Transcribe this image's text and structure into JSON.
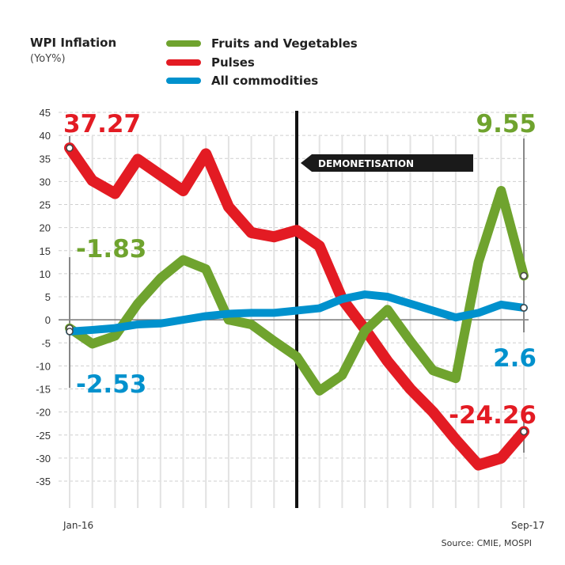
{
  "chart_data": {
    "type": "line",
    "title": "WPI Inflation",
    "subtitle": "(YoY%)",
    "xlabel": "",
    "ylabel": "",
    "ylim": [
      -35,
      45
    ],
    "yticks": [
      45,
      40,
      35,
      30,
      25,
      20,
      15,
      10,
      5,
      0,
      -5,
      -10,
      -15,
      -20,
      -25,
      -30,
      -35
    ],
    "x_tick_labels": {
      "first": "Jan-16",
      "last": "Sep-17"
    },
    "x": [
      "Jan-16",
      "Feb-16",
      "Mar-16",
      "Apr-16",
      "May-16",
      "Jun-16",
      "Jul-16",
      "Aug-16",
      "Sep-16",
      "Oct-16",
      "Nov-16",
      "Dec-16",
      "Jan-17",
      "Feb-17",
      "Mar-17",
      "Apr-17",
      "May-17",
      "Jun-17",
      "Jul-17",
      "Aug-17",
      "Sep-17"
    ],
    "series": [
      {
        "name": "Pulses",
        "color": "#e31b23",
        "values": [
          37.27,
          30.2,
          27.4,
          34.8,
          31.4,
          28,
          36,
          24.5,
          18.9,
          18,
          19.4,
          16,
          4.5,
          -2,
          -9,
          -15,
          -20,
          -26,
          -31.5,
          -30,
          -24.26
        ]
      },
      {
        "name": "Fruits and Vegetables",
        "color": "#6fa32e",
        "values": [
          -1.83,
          -5.2,
          -3.5,
          3.5,
          9,
          13,
          11,
          0,
          -1,
          -4.6,
          -8,
          -15.4,
          -12,
          -2.4,
          2.2,
          -4.6,
          -11,
          -12.7,
          12.5,
          28,
          9.55
        ]
      },
      {
        "name": "All commodities",
        "color": "#0091cd",
        "values": [
          -2.53,
          -2.2,
          -1.8,
          -1,
          -0.8,
          0,
          0.8,
          1.3,
          1.5,
          1.5,
          2,
          2.5,
          4.5,
          5.5,
          5,
          3.5,
          2,
          0.5,
          1.5,
          3.3,
          2.6
        ]
      }
    ],
    "legend": {
      "placement": "top",
      "entries": [
        "Fruits and Vegetables",
        "Pulses",
        "All commodities"
      ]
    },
    "annotations": {
      "event_index": 10,
      "event_label": "DEMONETISATION",
      "pulses_start": "37.27",
      "fv_start": "-1.83",
      "all_start": "-2.53",
      "fv_end": "9.55",
      "all_end": "2.6",
      "pulses_end": "-24.26"
    },
    "grid": true,
    "source": "Source: CMIE, MOSPI"
  }
}
